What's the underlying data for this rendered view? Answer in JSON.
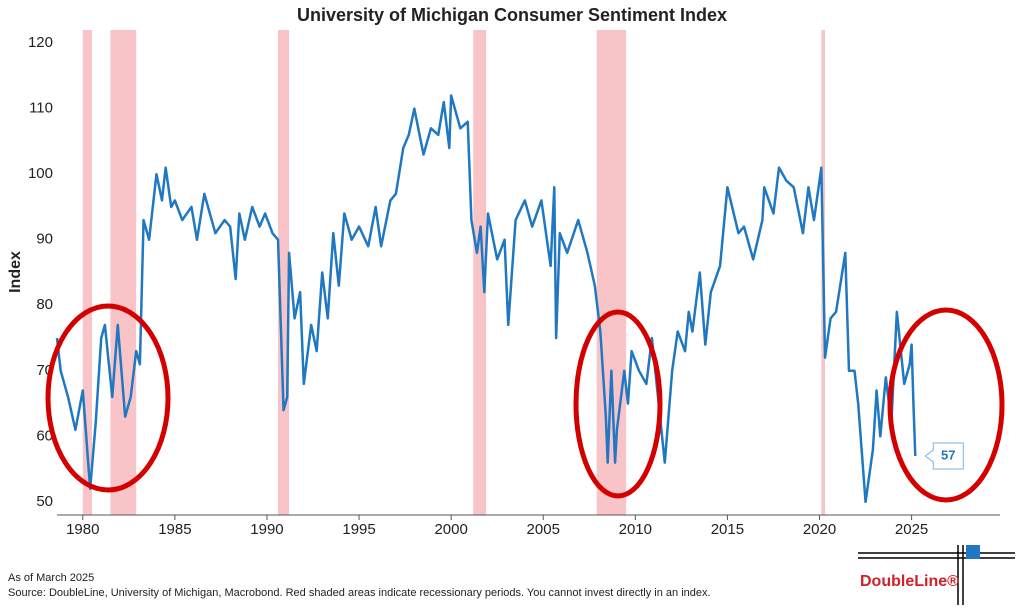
{
  "chart_data": {
    "type": "line",
    "title": "University of Michigan Consumer Sentiment Index",
    "y_label": "Index",
    "xlim": [
      1978.6,
      2029.8
    ],
    "ylim": [
      48,
      122
    ],
    "xticks": [
      1980,
      1985,
      1990,
      1995,
      2000,
      2005,
      2010,
      2015,
      2020,
      2025
    ],
    "yticks": [
      50,
      60,
      70,
      80,
      90,
      100,
      110,
      120
    ],
    "shaded_periods": [
      [
        1980.0,
        1980.5
      ],
      [
        1981.5,
        1982.9
      ],
      [
        1990.6,
        1991.2
      ],
      [
        2001.2,
        2001.9
      ],
      [
        2007.9,
        2009.5
      ],
      [
        2020.1,
        2020.3
      ]
    ],
    "shaded_color": "#f9c4c7",
    "series": [
      {
        "color": "#1f78c1",
        "x": [
          1978.6,
          1978.8,
          1979.2,
          1979.6,
          1980.0,
          1980.4,
          1980.7,
          1981.0,
          1981.2,
          1981.6,
          1981.9,
          1982.3,
          1982.6,
          1982.9,
          1983.1,
          1983.3,
          1983.6,
          1984.0,
          1984.3,
          1984.5,
          1984.8,
          1985.0,
          1985.4,
          1985.9,
          1986.2,
          1986.6,
          1987.2,
          1987.7,
          1988.0,
          1988.3,
          1988.5,
          1988.8,
          1989.2,
          1989.6,
          1989.9,
          1990.3,
          1990.6,
          1990.9,
          1991.1,
          1991.2,
          1991.5,
          1991.8,
          1992.0,
          1992.4,
          1992.7,
          1993.0,
          1993.3,
          1993.6,
          1993.9,
          1994.2,
          1994.6,
          1995.0,
          1995.5,
          1995.9,
          1996.2,
          1996.7,
          1997.0,
          1997.4,
          1997.7,
          1998.0,
          1998.5,
          1998.9,
          1999.3,
          1999.6,
          1999.9,
          2000.0,
          2000.5,
          2000.9,
          2001.1,
          2001.4,
          2001.6,
          2001.8,
          2002.0,
          2002.5,
          2002.9,
          2003.1,
          2003.5,
          2004.0,
          2004.4,
          2004.9,
          2005.4,
          2005.6,
          2005.7,
          2005.9,
          2006.3,
          2006.9,
          2007.4,
          2007.8,
          2008.1,
          2008.4,
          2008.5,
          2008.7,
          2008.9,
          2009.0,
          2009.4,
          2009.6,
          2009.8,
          2010.2,
          2010.6,
          2010.9,
          2011.6,
          2012.0,
          2012.3,
          2012.7,
          2012.9,
          2013.1,
          2013.5,
          2013.8,
          2014.1,
          2014.6,
          2015.0,
          2015.6,
          2015.9,
          2016.4,
          2016.9,
          2017.0,
          2017.5,
          2017.8,
          2018.2,
          2018.6,
          2019.1,
          2019.4,
          2019.7,
          2020.0,
          2020.1,
          2020.3,
          2020.6,
          2020.9,
          2021.4,
          2021.6,
          2021.9,
          2022.1,
          2022.5,
          2022.9,
          2023.1,
          2023.3,
          2023.6,
          2023.9,
          2024.2,
          2024.6,
          2024.9,
          2025.0,
          2025.1,
          2025.2
        ],
        "values": [
          75,
          70,
          66,
          61,
          67,
          52,
          62,
          75,
          77,
          66,
          77,
          63,
          66,
          73,
          71,
          93,
          90,
          100,
          96,
          101,
          95,
          96,
          93,
          95,
          90,
          97,
          91,
          93,
          92,
          84,
          94,
          90,
          95,
          92,
          94,
          91,
          90,
          64,
          66,
          88,
          78,
          82,
          68,
          77,
          73,
          85,
          78,
          91,
          83,
          94,
          90,
          92,
          89,
          95,
          89,
          96,
          97,
          104,
          106,
          110,
          103,
          107,
          106,
          111,
          104,
          112,
          107,
          108,
          93,
          88,
          92,
          82,
          94,
          87,
          90,
          77,
          93,
          96,
          92,
          96,
          86,
          98,
          75,
          91,
          88,
          93,
          88,
          83,
          76,
          63,
          56,
          70,
          56,
          61,
          70,
          65,
          73,
          70,
          68,
          75,
          56,
          70,
          76,
          73,
          79,
          76,
          85,
          74,
          82,
          86,
          98,
          91,
          92,
          87,
          93,
          98,
          94,
          101,
          99,
          98,
          91,
          98,
          93,
          99,
          101,
          72,
          78,
          79,
          88,
          70,
          70,
          65,
          50,
          58,
          67,
          60,
          69,
          62,
          79,
          68,
          71,
          74,
          65,
          57
        ]
      }
    ]
  },
  "footer": {
    "as_of": "As of March 2025",
    "source": "Source: DoubleLine, University of Michigan, Macrobond. Red shaded areas indicate recessionary periods. You cannot invest directly in an index.",
    "logo": "DoubleLine®"
  }
}
